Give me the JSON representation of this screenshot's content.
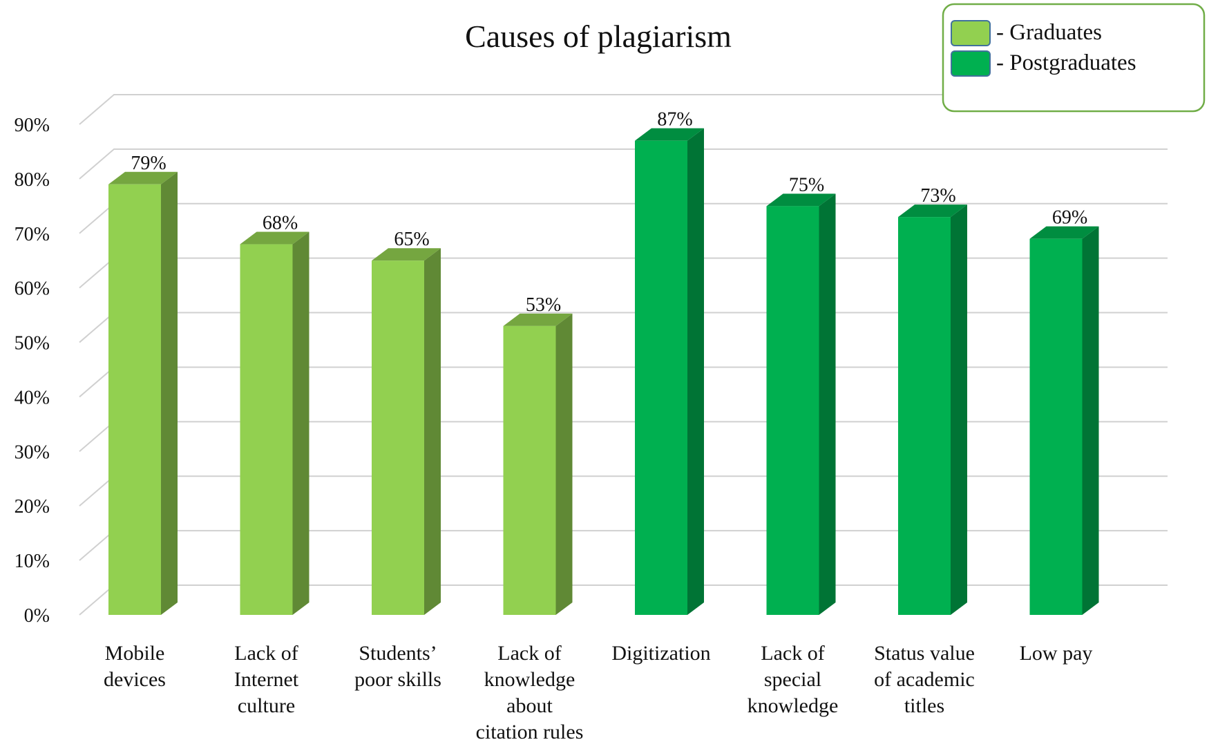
{
  "chart_data": {
    "type": "bar",
    "title": "Causes of plagiarism",
    "xlabel": "",
    "ylabel": "",
    "ylim": [
      0,
      90
    ],
    "y_ticks": [
      "0%",
      "10%",
      "20%",
      "30%",
      "40%",
      "50%",
      "60%",
      "70%",
      "80%",
      "90%"
    ],
    "grid": true,
    "three_d": true,
    "legend_position": "top-right",
    "categories": [
      [
        "Mobile",
        "devices"
      ],
      [
        "Lack of",
        "Internet",
        "culture"
      ],
      [
        "Students’",
        "poor skills"
      ],
      [
        "Lack of",
        "knowledge",
        "about",
        "citation rules"
      ],
      [
        "Digitization"
      ],
      [
        "Lack of",
        "special",
        "knowledge"
      ],
      [
        "Status value",
        "of academic",
        "titles"
      ],
      [
        "Low pay"
      ]
    ],
    "series": [
      {
        "name": "- Graduates",
        "color": "#92d050",
        "values": [
          79,
          68,
          65,
          53,
          null,
          null,
          null,
          null
        ]
      },
      {
        "name": "- Postgraduates",
        "color": "#00b050",
        "values": [
          null,
          null,
          null,
          null,
          87,
          75,
          73,
          69
        ]
      }
    ],
    "data_labels": [
      "79%",
      "68%",
      "65%",
      "53%",
      "87%",
      "75%",
      "73%",
      "69%"
    ]
  }
}
